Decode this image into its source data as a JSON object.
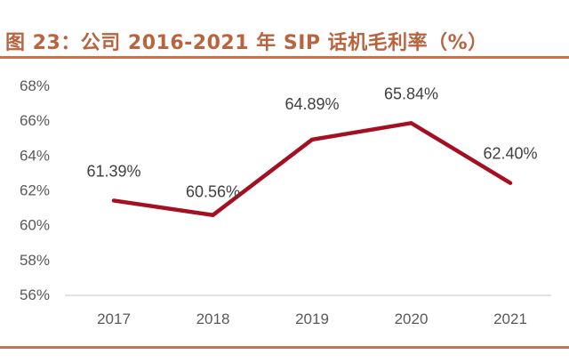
{
  "header": {
    "title": "图 23：公司 2016-2021 年 SIP 话机毛利率（%）"
  },
  "colors": {
    "title": "#b8643f",
    "rule": "#c87050",
    "line": "#a50f22",
    "axis": "#d9d9d9",
    "tick_text": "#595959"
  },
  "chart_data": {
    "type": "line",
    "title": "图 23：公司 2016-2021 年 SIP 话机毛利率（%）",
    "xlabel": "",
    "ylabel": "",
    "categories": [
      "2017",
      "2018",
      "2019",
      "2020",
      "2021"
    ],
    "series": [
      {
        "name": "SIP 话机毛利率",
        "values": [
          61.39,
          60.56,
          64.89,
          65.84,
          62.4
        ],
        "labels": [
          "61.39%",
          "60.56%",
          "64.89%",
          "65.84%",
          "62.40%"
        ]
      }
    ],
    "ylim": [
      56,
      68
    ],
    "yticks": [
      56,
      58,
      60,
      62,
      64,
      66,
      68
    ],
    "ytick_labels": [
      "56%",
      "58%",
      "60%",
      "62%",
      "64%",
      "66%",
      "68%"
    ],
    "grid": false,
    "legend": "none"
  }
}
